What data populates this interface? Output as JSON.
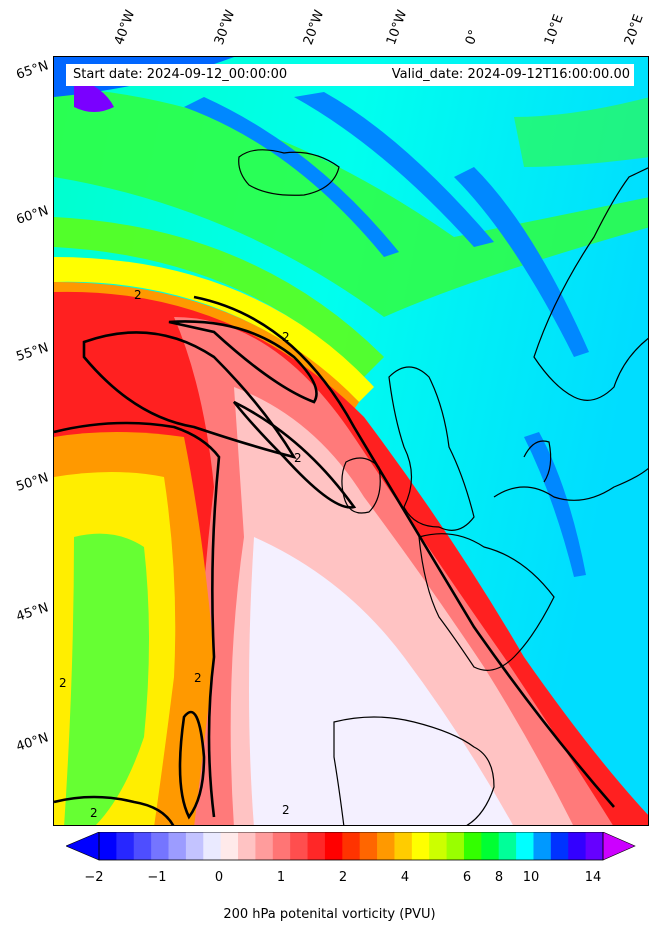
{
  "map": {
    "info": {
      "start_date": "Start date: 2024-09-12_00:00:00",
      "valid_date": "Valid_date: 2024-09-12T16:00:00.00"
    },
    "lon_labels": [
      "40°W",
      "30°W",
      "20°W",
      "10°W",
      "0°",
      "10°E",
      "20°E"
    ],
    "lat_labels": [
      "65°N",
      "60°N",
      "55°N",
      "50°N",
      "45°N",
      "40°N"
    ],
    "contour_label": "2",
    "variable": "200 hPa potential vorticity",
    "units": "PVU"
  },
  "colorbar": {
    "label": "200 hPa potenital vorticity (PVU)",
    "ticks": [
      "−2",
      "−1",
      "0",
      "1",
      "2",
      "4",
      "6",
      "8",
      "10",
      "14"
    ],
    "colors": [
      "#0000ff",
      "#2727ff",
      "#4e4eff",
      "#7575ff",
      "#9c9cff",
      "#c3c3ff",
      "#eaeaff",
      "#ffeaea",
      "#ffc3c3",
      "#ff9c9c",
      "#ff7575",
      "#ff4e4e",
      "#ff2727",
      "#ff0000",
      "#ff3300",
      "#ff6600",
      "#ff9900",
      "#ffcc00",
      "#ffff00",
      "#ccff00",
      "#99ff00",
      "#33ff00",
      "#00ff33",
      "#00ff99",
      "#00ffff",
      "#0099ff",
      "#0033ff",
      "#3300ff",
      "#6600ff"
    ],
    "extend_low_color": "#0000ff",
    "extend_high_color": "#cc00ff"
  }
}
